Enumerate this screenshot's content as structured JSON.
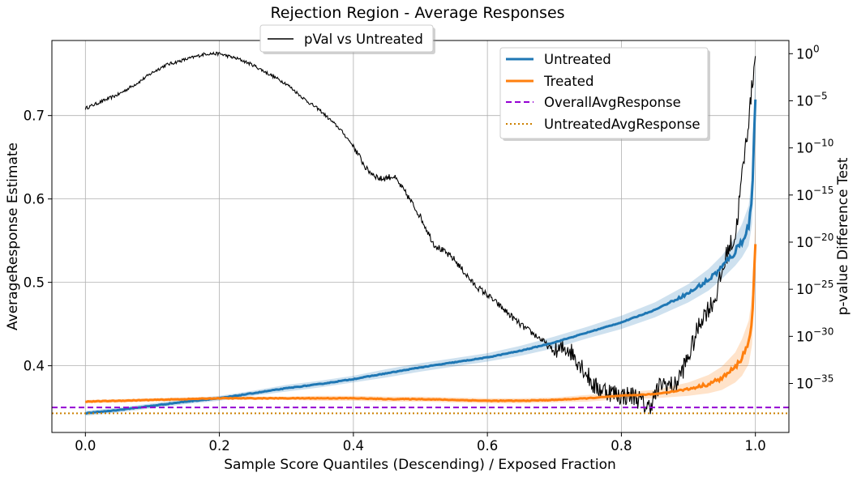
{
  "chart_data": {
    "type": "line",
    "title": "Rejection Region - Average Responses",
    "xlabel": "Sample Score Quantiles (Descending) / Exposed Fraction",
    "ylabel": "AverageResponse Estimate",
    "ylabel_right": "p-value Difference Test",
    "xlim": [
      -0.05,
      1.05
    ],
    "ylim": [
      0.32,
      0.79
    ],
    "ylim_right_log10": [
      -40.2,
      1.4
    ],
    "grid": true,
    "x_ticks": [
      "0.0",
      "0.2",
      "0.4",
      "0.6",
      "0.8",
      "1.0"
    ],
    "y_ticks": [
      "0.4",
      "0.5",
      "0.6",
      "0.7"
    ],
    "y_right_ticks": [
      {
        "base": "10",
        "exp": "0"
      },
      {
        "base": "10",
        "exp": "−5"
      },
      {
        "base": "10",
        "exp": "−10"
      },
      {
        "base": "10",
        "exp": "−15"
      },
      {
        "base": "10",
        "exp": "−20"
      },
      {
        "base": "10",
        "exp": "−25"
      },
      {
        "base": "10",
        "exp": "−30"
      },
      {
        "base": "10",
        "exp": "−35"
      }
    ],
    "series": [
      {
        "name": "Untreated",
        "color": "#1f77b4",
        "style": "solid",
        "band": true,
        "x": [
          0.0,
          0.05,
          0.1,
          0.15,
          0.2,
          0.25,
          0.3,
          0.35,
          0.4,
          0.45,
          0.5,
          0.55,
          0.6,
          0.65,
          0.7,
          0.75,
          0.8,
          0.85,
          0.9,
          0.93,
          0.95,
          0.97,
          0.98,
          0.99,
          0.995,
          1.0
        ],
        "values": [
          0.343,
          0.347,
          0.352,
          0.357,
          0.361,
          0.367,
          0.373,
          0.378,
          0.384,
          0.391,
          0.398,
          0.404,
          0.41,
          0.418,
          0.428,
          0.44,
          0.452,
          0.467,
          0.487,
          0.503,
          0.518,
          0.537,
          0.55,
          0.568,
          0.6,
          0.722
        ],
        "band_halfwidth": [
          0.003,
          0.003,
          0.003,
          0.003,
          0.003,
          0.003,
          0.004,
          0.004,
          0.004,
          0.005,
          0.005,
          0.005,
          0.005,
          0.006,
          0.007,
          0.007,
          0.008,
          0.009,
          0.011,
          0.013,
          0.014,
          0.017,
          0.02,
          0.024,
          0.03,
          0.04
        ]
      },
      {
        "name": "Treated",
        "color": "#ff7f0e",
        "style": "solid",
        "band": true,
        "x": [
          0.0,
          0.05,
          0.1,
          0.15,
          0.2,
          0.25,
          0.3,
          0.35,
          0.4,
          0.45,
          0.5,
          0.55,
          0.6,
          0.65,
          0.7,
          0.75,
          0.8,
          0.85,
          0.9,
          0.93,
          0.95,
          0.97,
          0.98,
          0.99,
          0.995,
          1.0
        ],
        "values": [
          0.357,
          0.358,
          0.359,
          0.36,
          0.361,
          0.361,
          0.361,
          0.361,
          0.361,
          0.36,
          0.36,
          0.359,
          0.358,
          0.358,
          0.359,
          0.361,
          0.364,
          0.366,
          0.372,
          0.378,
          0.385,
          0.398,
          0.41,
          0.428,
          0.455,
          0.542
        ],
        "band_halfwidth": [
          0.002,
          0.002,
          0.002,
          0.002,
          0.002,
          0.002,
          0.002,
          0.003,
          0.003,
          0.003,
          0.003,
          0.003,
          0.003,
          0.003,
          0.003,
          0.004,
          0.004,
          0.005,
          0.008,
          0.011,
          0.014,
          0.018,
          0.022,
          0.026,
          0.03,
          0.035
        ]
      },
      {
        "name": "OverallAvgResponse",
        "color": "#9400d3",
        "style": "dashed",
        "value": 0.35
      },
      {
        "name": "UntreatedAvgResponse",
        "color": "#cc8000",
        "style": "dotted",
        "value": 0.343
      },
      {
        "name": "pVal vs Untreated",
        "color": "#000000",
        "style": "solid",
        "axis": "right",
        "x": [
          0.0,
          0.02,
          0.05,
          0.08,
          0.1,
          0.12,
          0.15,
          0.18,
          0.2,
          0.23,
          0.25,
          0.28,
          0.3,
          0.33,
          0.35,
          0.38,
          0.4,
          0.42,
          0.44,
          0.46,
          0.48,
          0.5,
          0.52,
          0.55,
          0.58,
          0.6,
          0.63,
          0.65,
          0.68,
          0.7,
          0.72,
          0.74,
          0.76,
          0.78,
          0.8,
          0.82,
          0.84,
          0.86,
          0.88,
          0.9,
          0.92,
          0.94,
          0.96,
          0.97,
          0.98,
          0.99,
          1.0
        ],
        "log10_values": [
          -5.8,
          -5.2,
          -4.3,
          -3.0,
          -2.0,
          -1.2,
          -0.6,
          0.0,
          0.0,
          -0.6,
          -1.2,
          -2.4,
          -3.2,
          -5.0,
          -6.0,
          -8.0,
          -9.8,
          -12.3,
          -13.3,
          -13.0,
          -15.0,
          -17.3,
          -20.2,
          -21.8,
          -24.5,
          -25.6,
          -27.5,
          -28.8,
          -30.3,
          -31.7,
          -31.2,
          -33.0,
          -35.4,
          -35.8,
          -36.3,
          -36.3,
          -37.6,
          -35.0,
          -35.3,
          -32.2,
          -28.0,
          -26.0,
          -20.6,
          -19.5,
          -13.0,
          -7.0,
          0.0
        ]
      }
    ],
    "legends": [
      {
        "placement": "upper-right-inset",
        "entries": [
          "Untreated",
          "Treated",
          "OverallAvgResponse",
          "UntreatedAvgResponse"
        ]
      },
      {
        "placement": "top-left-above",
        "entries": [
          "pVal vs Untreated"
        ]
      }
    ]
  }
}
